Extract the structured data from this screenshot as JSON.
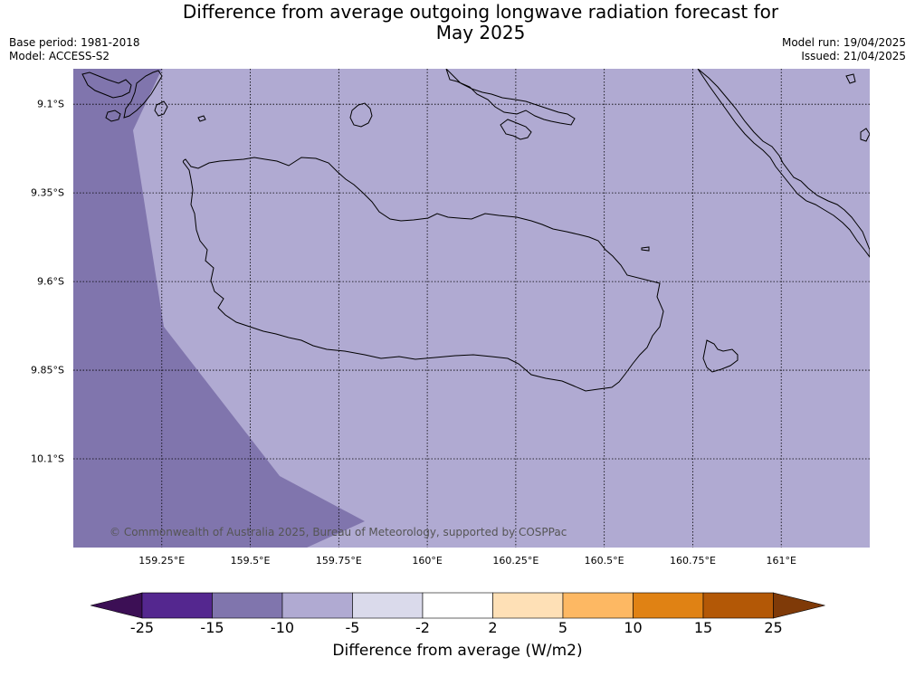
{
  "title": {
    "line1": "Difference from average outgoing longwave radiation forecast for",
    "line2": "May 2025"
  },
  "meta_left": {
    "base_period": "Base period: 1981-2018",
    "model": "Model: ACCESS-S2"
  },
  "meta_right": {
    "model_run": "Model run: 19/04/2025",
    "issued": "Issued: 21/04/2025"
  },
  "map": {
    "lon_range": [
      159.0,
      161.25
    ],
    "lat_range": [
      -9.0,
      -10.35
    ],
    "lat_ticks": [
      {
        "value": -9.1,
        "label": "9.1°S"
      },
      {
        "value": -9.35,
        "label": "9.35°S"
      },
      {
        "value": -9.6,
        "label": "9.6°S"
      },
      {
        "value": -9.85,
        "label": "9.85°S"
      },
      {
        "value": -10.1,
        "label": "10.1°S"
      }
    ],
    "lon_ticks": [
      {
        "value": 159.25,
        "label": "159.25°E"
      },
      {
        "value": 159.5,
        "label": "159.5°E"
      },
      {
        "value": 159.75,
        "label": "159.75°E"
      },
      {
        "value": 160.0,
        "label": "160°E"
      },
      {
        "value": 160.25,
        "label": "160.25°E"
      },
      {
        "value": 160.5,
        "label": "160.5°E"
      },
      {
        "value": 160.75,
        "label": "160.75°E"
      },
      {
        "value": 161.0,
        "label": "161°E"
      }
    ],
    "base_fill_color": "#b0aad2",
    "region_fill_color": "#8075ad",
    "coast_color": "#000000",
    "copyright": "© Commonwealth of Australia 2025, Bureau of Meteorology, supported by COSPPac"
  },
  "colorbar": {
    "title": "Difference from average (W/m2)",
    "ticks": [
      "-25",
      "-15",
      "-10",
      "-5",
      "-2",
      "2",
      "5",
      "10",
      "15",
      "25"
    ],
    "under_color": "#3c0f55",
    "over_color": "#7f3a08",
    "colors": [
      "#54278f",
      "#8075ad",
      "#b0aad2",
      "#dadaeb",
      "#ffffff",
      "#fee0b6",
      "#fdb863",
      "#e08214",
      "#b35806"
    ]
  }
}
